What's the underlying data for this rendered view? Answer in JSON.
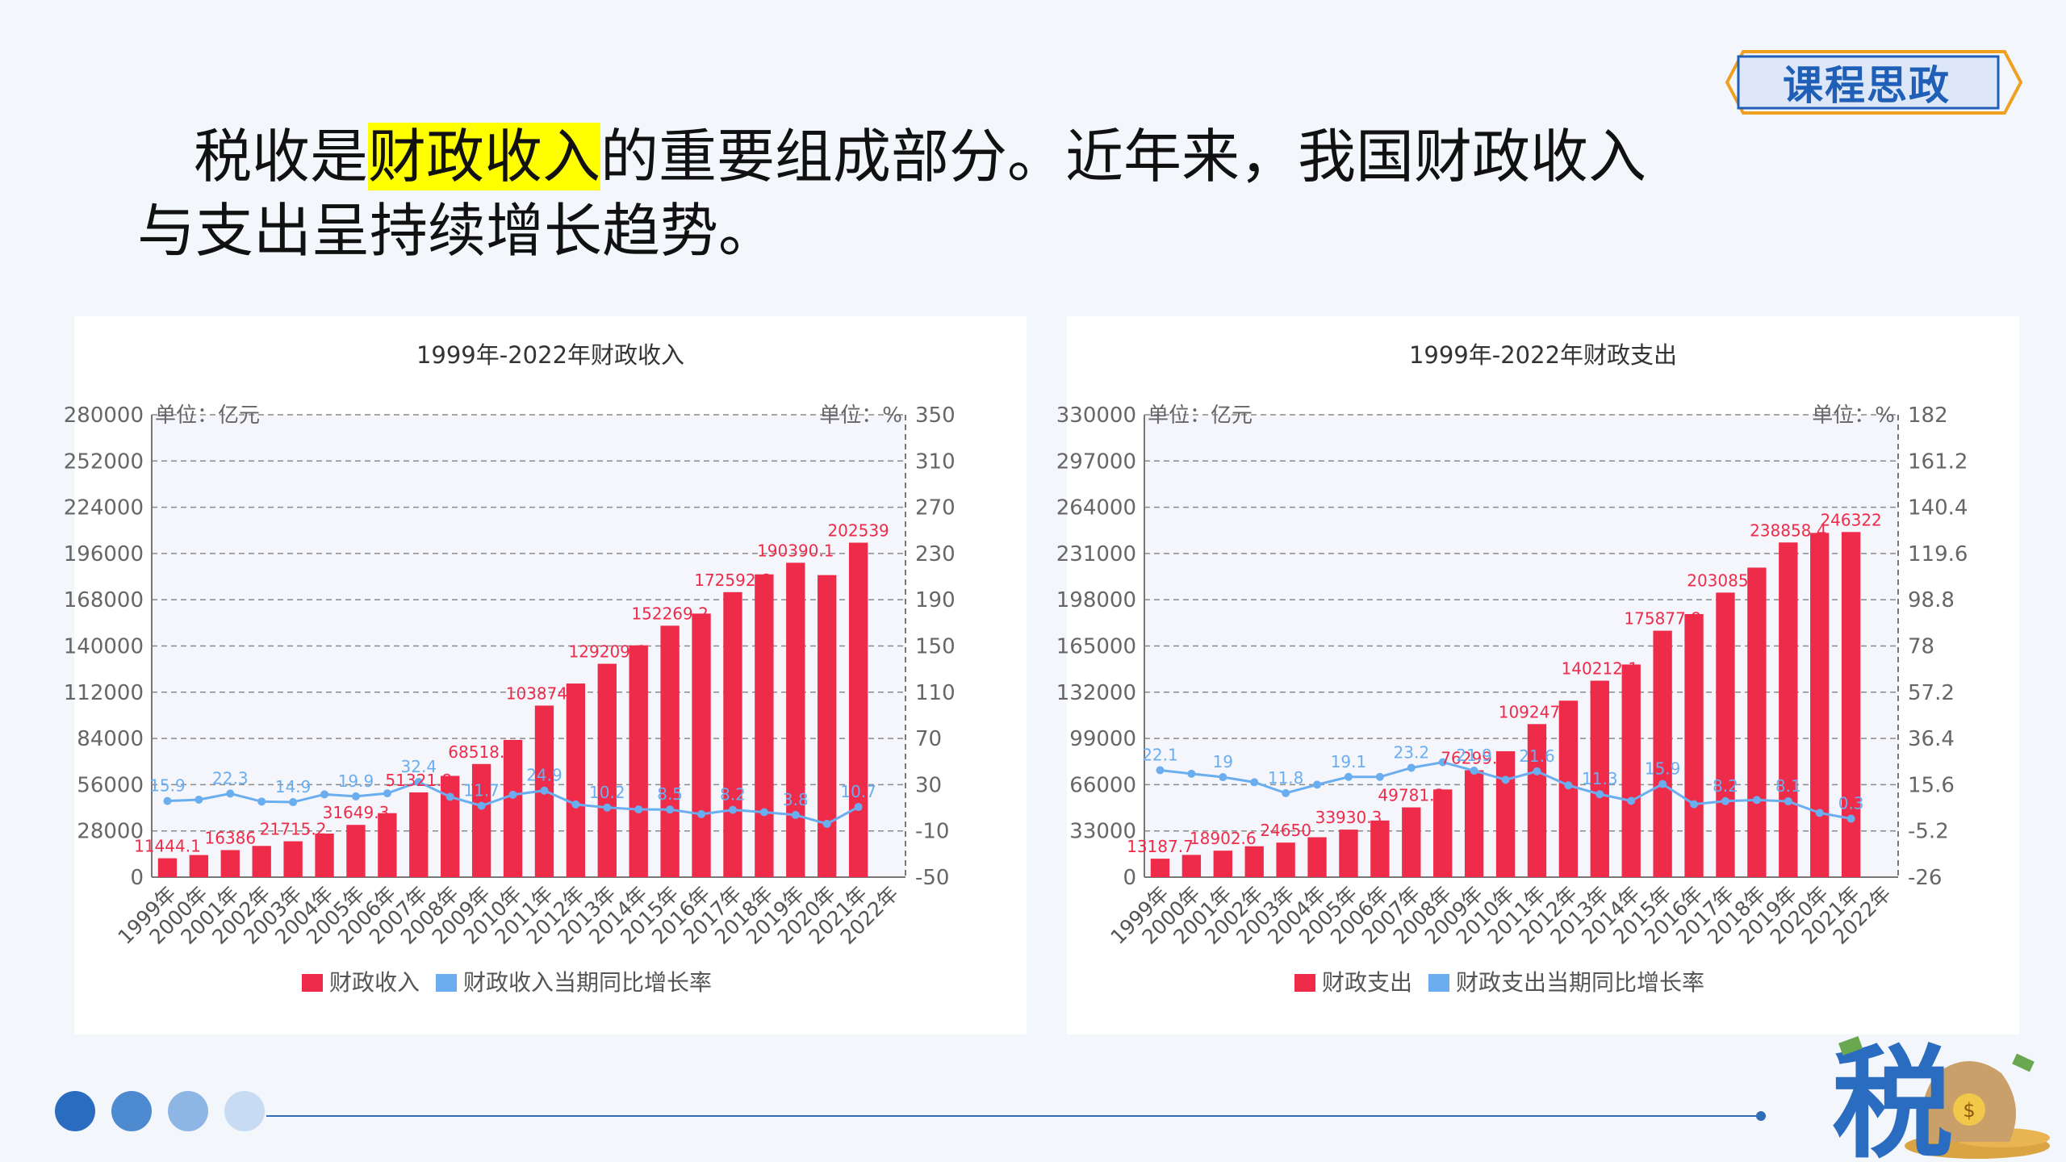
{
  "badge": {
    "label": "课程思政"
  },
  "intro": {
    "part1": "税收是",
    "highlight": "财政收入",
    "part2": "的重要组成部分。近年来，我国财政收入",
    "line2": "与支出呈持续增长趋势。"
  },
  "colors": {
    "bar": "#ee2c4a",
    "line": "#6aaef0",
    "accent": "#1f5fb8",
    "highlight": "#ffff00"
  },
  "chart_data": [
    {
      "type": "bar",
      "title": "1999年-2022年财政收入",
      "left_unit": "单位：亿元",
      "right_unit": "单位：%",
      "left_ticks": [
        "280000",
        "252000",
        "224000",
        "196000",
        "168000",
        "140000",
        "112000",
        "84000",
        "56000",
        "28000",
        "0"
      ],
      "right_ticks": [
        "350",
        "310",
        "270",
        "230",
        "190",
        "150",
        "110",
        "70",
        "30",
        "-10",
        "-50"
      ],
      "ylim": [
        0,
        280000
      ],
      "y2lim": [
        -50,
        350
      ],
      "categories": [
        "1999年",
        "2000年",
        "2001年",
        "2002年",
        "2003年",
        "2004年",
        "2005年",
        "2006年",
        "2007年",
        "2008年",
        "2009年",
        "2010年",
        "2011年",
        "2012年",
        "2013年",
        "2014年",
        "2015年",
        "2016年",
        "2017年",
        "2018年",
        "2019年",
        "2020年",
        "2021年",
        "2022年"
      ],
      "series": [
        {
          "name": "财政收入",
          "kind": "bar",
          "values": [
            11444,
            13395,
            16386,
            18904,
            21715,
            26396,
            31649,
            38760,
            51322,
            61330,
            68518,
            83102,
            103874,
            117254,
            129210,
            140370,
            152269,
            159605,
            172593,
            183360,
            190390,
            182914,
            202539,
            null
          ]
        },
        {
          "name": "财政收入当期同比增长率",
          "kind": "line",
          "values": [
            15.9,
            17.0,
            22.3,
            15.4,
            14.9,
            21.6,
            19.9,
            22.5,
            32.4,
            19.5,
            11.7,
            21.3,
            24.9,
            12.9,
            10.2,
            8.6,
            8.5,
            4.5,
            8.2,
            6.2,
            3.8,
            -3.9,
            10.7,
            null
          ]
        }
      ],
      "bar_labels": [
        {
          "i": 0,
          "text": "11444.1"
        },
        {
          "i": 2,
          "text": "16386"
        },
        {
          "i": 4,
          "text": "21715.2"
        },
        {
          "i": 6,
          "text": "31649.3"
        },
        {
          "i": 8,
          "text": "51321.8"
        },
        {
          "i": 10,
          "text": "68518.3"
        },
        {
          "i": 12,
          "text": "103874.4"
        },
        {
          "i": 14,
          "text": "129209.6"
        },
        {
          "i": 16,
          "text": "152269.2"
        },
        {
          "i": 18,
          "text": "172592.8"
        },
        {
          "i": 20,
          "text": "190390.1"
        },
        {
          "i": 22,
          "text": "202539"
        }
      ],
      "line_labels": [
        {
          "i": 0,
          "text": "15.9"
        },
        {
          "i": 2,
          "text": "22.3"
        },
        {
          "i": 4,
          "text": "14.9"
        },
        {
          "i": 6,
          "text": "19.9"
        },
        {
          "i": 8,
          "text": "32.4"
        },
        {
          "i": 10,
          "text": "11.7"
        },
        {
          "i": 12,
          "text": "24.9"
        },
        {
          "i": 14,
          "text": "10.2"
        },
        {
          "i": 16,
          "text": "8.5"
        },
        {
          "i": 18,
          "text": "8.2"
        },
        {
          "i": 20,
          "text": "3.8"
        },
        {
          "i": 22,
          "text": "10.7"
        }
      ],
      "legend": [
        "财政收入",
        "财政收入当期同比增长率"
      ],
      "grid": true
    },
    {
      "type": "bar",
      "title": "1999年-2022年财政支出",
      "left_unit": "单位：亿元",
      "right_unit": "单位：%",
      "left_ticks": [
        "330000",
        "297000",
        "264000",
        "231000",
        "198000",
        "165000",
        "132000",
        "99000",
        "66000",
        "33000",
        "0"
      ],
      "right_ticks": [
        "182",
        "161.2",
        "140.4",
        "119.6",
        "98.8",
        "78",
        "57.2",
        "36.4",
        "15.6",
        "-5.2",
        "-26"
      ],
      "ylim": [
        0,
        330000
      ],
      "y2lim": [
        -26,
        182
      ],
      "categories": [
        "1999年",
        "2000年",
        "2001年",
        "2002年",
        "2003年",
        "2004年",
        "2005年",
        "2006年",
        "2007年",
        "2008年",
        "2009年",
        "2010年",
        "2011年",
        "2012年",
        "2013年",
        "2014年",
        "2015年",
        "2016年",
        "2017年",
        "2018年",
        "2019年",
        "2020年",
        "2021年",
        "2022年"
      ],
      "series": [
        {
          "name": "财政支出",
          "kind": "bar",
          "values": [
            13188,
            15887,
            18903,
            22053,
            24650,
            28487,
            33930,
            40423,
            49781,
            62593,
            76300,
            89874,
            109248,
            125953,
            140212,
            151786,
            175878,
            187755,
            203085,
            220904,
            238858,
            245679,
            246322,
            null
          ]
        },
        {
          "name": "财政支出当期同比增长率",
          "kind": "line",
          "values": [
            22.1,
            20.5,
            19.0,
            16.7,
            11.8,
            15.6,
            19.1,
            19.1,
            23.2,
            25.7,
            21.9,
            17.8,
            21.6,
            15.3,
            11.3,
            8.3,
            15.9,
            6.8,
            8.2,
            8.7,
            8.1,
            2.9,
            0.3,
            null
          ]
        }
      ],
      "bar_labels": [
        {
          "i": 0,
          "text": "13187.7"
        },
        {
          "i": 2,
          "text": "18902.6"
        },
        {
          "i": 4,
          "text": "24650"
        },
        {
          "i": 6,
          "text": "33930.3"
        },
        {
          "i": 8,
          "text": "49781.3"
        },
        {
          "i": 10,
          "text": "76299.9"
        },
        {
          "i": 12,
          "text": "109247.8"
        },
        {
          "i": 14,
          "text": "140212.1"
        },
        {
          "i": 16,
          "text": "175877.8"
        },
        {
          "i": 18,
          "text": "203085.5"
        },
        {
          "i": 20,
          "text": "238858.4"
        },
        {
          "i": 22,
          "text": "246322"
        }
      ],
      "line_labels": [
        {
          "i": 0,
          "text": "22.1"
        },
        {
          "i": 2,
          "text": "19"
        },
        {
          "i": 4,
          "text": "11.8"
        },
        {
          "i": 6,
          "text": "19.1"
        },
        {
          "i": 8,
          "text": "23.2"
        },
        {
          "i": 10,
          "text": "21.9"
        },
        {
          "i": 12,
          "text": "21.6"
        },
        {
          "i": 14,
          "text": "11.3"
        },
        {
          "i": 16,
          "text": "15.9"
        },
        {
          "i": 18,
          "text": "8.2"
        },
        {
          "i": 20,
          "text": "8.1"
        },
        {
          "i": 22,
          "text": "0.3"
        }
      ],
      "legend": [
        "财政支出",
        "财政支出当期同比增长率"
      ],
      "grid": true
    }
  ],
  "decor": {
    "dot_colors": [
      "#2a6cc0",
      "#4d8ad0",
      "#8db6e4",
      "#c7dcf2"
    ],
    "logo_icon": "tax-money-bag-icon",
    "logo_text": "税"
  }
}
